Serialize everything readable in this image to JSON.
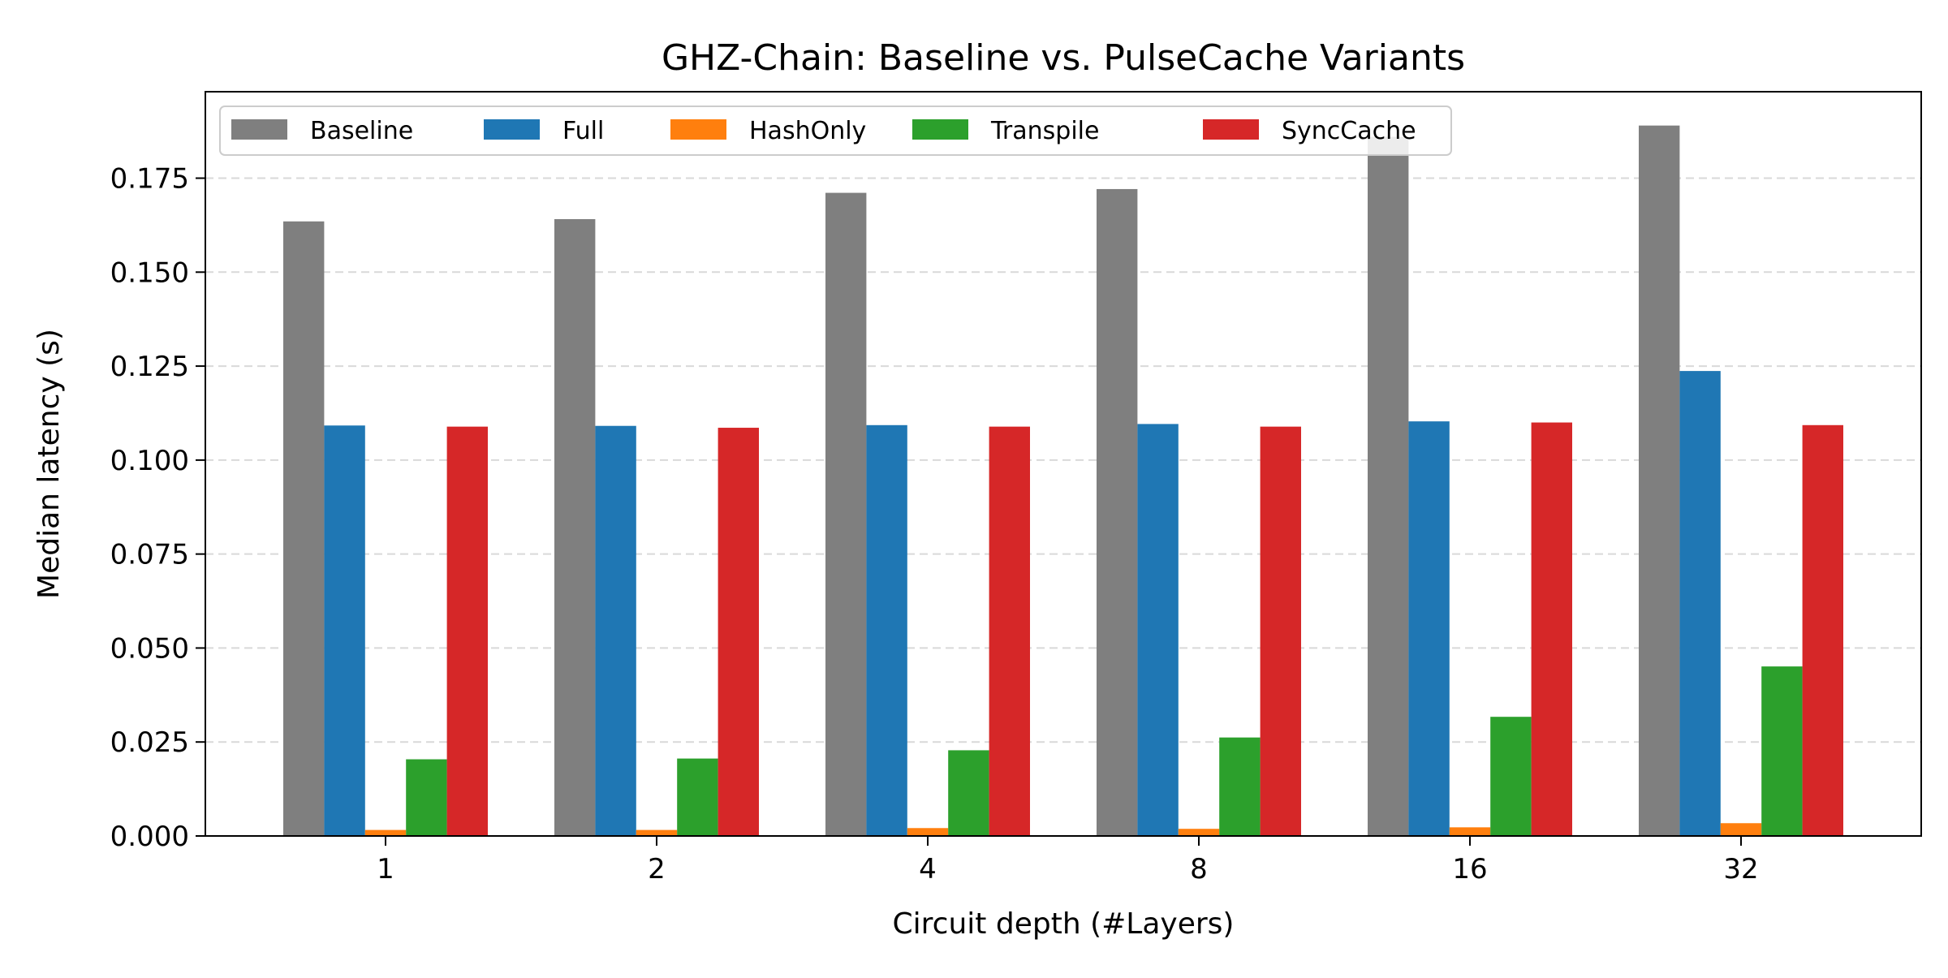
{
  "chart_data": {
    "type": "bar",
    "title": "GHZ-Chain: Baseline vs. PulseCache Variants",
    "xlabel": "Circuit depth (#Layers)",
    "ylabel": "Median latency (s)",
    "categories": [
      "1",
      "2",
      "4",
      "8",
      "16",
      "32"
    ],
    "ylim": [
      0,
      0.198
    ],
    "yticks": [
      0.0,
      0.025,
      0.05,
      0.075,
      0.1,
      0.125,
      0.15,
      0.175
    ],
    "ytick_labels": [
      "0.000",
      "0.025",
      "0.050",
      "0.075",
      "0.100",
      "0.125",
      "0.150",
      "0.175"
    ],
    "grid": "y-dashed",
    "legend_position": "top-left",
    "series": [
      {
        "name": "Baseline",
        "color": "#7f7f7f",
        "values": [
          0.1635,
          0.1641,
          0.1711,
          0.1721,
          0.186,
          0.189
        ]
      },
      {
        "name": "Full",
        "color": "#1f77b4",
        "values": [
          0.1092,
          0.1091,
          0.1093,
          0.1096,
          0.1103,
          0.1237
        ]
      },
      {
        "name": "HashOnly",
        "color": "#ff7f0e",
        "values": [
          0.0016,
          0.0016,
          0.0021,
          0.0019,
          0.0023,
          0.0034
        ]
      },
      {
        "name": "Transpile",
        "color": "#2ca02c",
        "values": [
          0.0204,
          0.0206,
          0.0228,
          0.0262,
          0.0317,
          0.0451
        ]
      },
      {
        "name": "SyncCache",
        "color": "#d62728",
        "values": [
          0.1089,
          0.1086,
          0.1089,
          0.1089,
          0.11,
          0.1093
        ]
      }
    ]
  }
}
